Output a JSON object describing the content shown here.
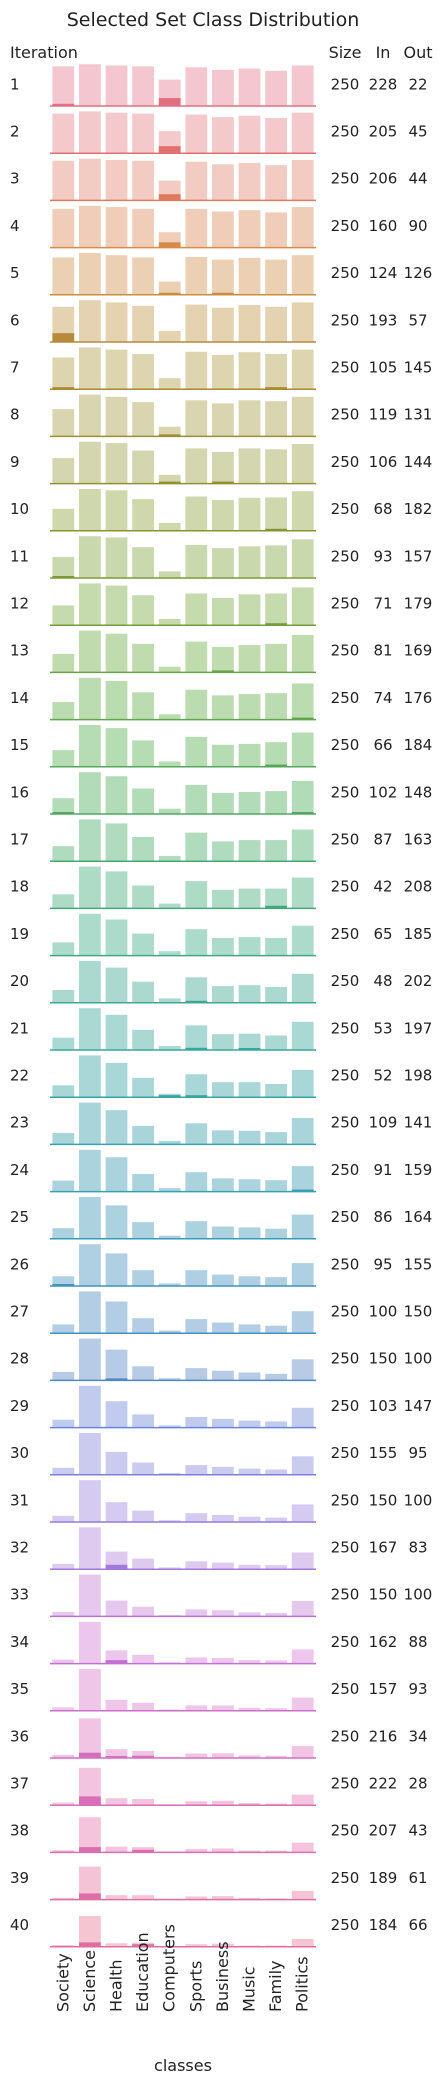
{
  "chart_data": {
    "type": "bar",
    "title": "Selected Set Class Distribution",
    "xlabel": "classes",
    "row_header": "Iteration",
    "column_headers": [
      "Size",
      "In",
      "Out"
    ],
    "categories": [
      "Society",
      "Science",
      "Health",
      "Education",
      "Computers",
      "Sports",
      "Business",
      "Music",
      "Family",
      "Politics"
    ],
    "total_heights": [
      0.9,
      0.95,
      0.92,
      0.9,
      0.6,
      0.88,
      0.82,
      0.85,
      0.8,
      0.92
    ],
    "total_decay": [
      [
        0.9,
        0.95,
        0.92,
        0.9,
        0.6,
        0.88,
        0.82,
        0.85,
        0.8,
        0.92
      ],
      [
        0.9,
        0.95,
        0.92,
        0.9,
        0.5,
        0.88,
        0.82,
        0.85,
        0.8,
        0.92
      ],
      [
        0.9,
        0.95,
        0.92,
        0.9,
        0.45,
        0.88,
        0.82,
        0.85,
        0.8,
        0.92
      ],
      [
        0.88,
        0.95,
        0.92,
        0.88,
        0.35,
        0.88,
        0.82,
        0.85,
        0.8,
        0.92
      ],
      [
        0.85,
        0.95,
        0.9,
        0.85,
        0.3,
        0.86,
        0.8,
        0.84,
        0.8,
        0.9
      ],
      [
        0.8,
        0.95,
        0.9,
        0.82,
        0.25,
        0.85,
        0.78,
        0.84,
        0.8,
        0.9
      ],
      [
        0.72,
        0.95,
        0.9,
        0.8,
        0.25,
        0.85,
        0.78,
        0.84,
        0.8,
        0.9
      ],
      [
        0.62,
        0.95,
        0.9,
        0.78,
        0.22,
        0.82,
        0.75,
        0.82,
        0.8,
        0.9
      ],
      [
        0.58,
        0.95,
        0.92,
        0.75,
        0.2,
        0.8,
        0.72,
        0.8,
        0.78,
        0.9
      ],
      [
        0.5,
        0.95,
        0.92,
        0.72,
        0.18,
        0.78,
        0.7,
        0.75,
        0.76,
        0.9
      ],
      [
        0.48,
        0.95,
        0.92,
        0.7,
        0.15,
        0.75,
        0.68,
        0.72,
        0.74,
        0.88
      ],
      [
        0.45,
        0.95,
        0.9,
        0.68,
        0.14,
        0.72,
        0.62,
        0.7,
        0.72,
        0.86
      ],
      [
        0.42,
        0.95,
        0.88,
        0.65,
        0.13,
        0.7,
        0.58,
        0.62,
        0.65,
        0.85
      ],
      [
        0.4,
        0.95,
        0.88,
        0.62,
        0.12,
        0.68,
        0.55,
        0.58,
        0.6,
        0.82
      ],
      [
        0.38,
        0.95,
        0.88,
        0.6,
        0.12,
        0.68,
        0.5,
        0.52,
        0.56,
        0.78
      ],
      [
        0.36,
        0.95,
        0.86,
        0.58,
        0.12,
        0.66,
        0.48,
        0.5,
        0.52,
        0.75
      ],
      [
        0.34,
        0.95,
        0.86,
        0.55,
        0.12,
        0.65,
        0.45,
        0.48,
        0.48,
        0.72
      ],
      [
        0.32,
        0.95,
        0.84,
        0.52,
        0.11,
        0.62,
        0.42,
        0.45,
        0.45,
        0.7
      ],
      [
        0.3,
        0.95,
        0.82,
        0.5,
        0.1,
        0.6,
        0.4,
        0.42,
        0.4,
        0.68
      ],
      [
        0.29,
        0.95,
        0.8,
        0.48,
        0.1,
        0.58,
        0.38,
        0.4,
        0.36,
        0.66
      ],
      [
        0.28,
        0.95,
        0.8,
        0.46,
        0.09,
        0.56,
        0.36,
        0.37,
        0.33,
        0.64
      ],
      [
        0.27,
        0.95,
        0.78,
        0.44,
        0.08,
        0.52,
        0.34,
        0.34,
        0.3,
        0.62
      ],
      [
        0.26,
        0.95,
        0.78,
        0.42,
        0.08,
        0.48,
        0.32,
        0.31,
        0.28,
        0.6
      ],
      [
        0.25,
        0.95,
        0.78,
        0.4,
        0.08,
        0.44,
        0.3,
        0.28,
        0.26,
        0.58
      ],
      [
        0.24,
        0.95,
        0.76,
        0.38,
        0.07,
        0.4,
        0.28,
        0.26,
        0.23,
        0.55
      ],
      [
        0.22,
        0.95,
        0.74,
        0.36,
        0.06,
        0.36,
        0.26,
        0.22,
        0.2,
        0.52
      ],
      [
        0.2,
        0.95,
        0.72,
        0.34,
        0.06,
        0.32,
        0.24,
        0.2,
        0.17,
        0.5
      ],
      [
        0.19,
        0.95,
        0.7,
        0.32,
        0.05,
        0.28,
        0.22,
        0.18,
        0.15,
        0.48
      ],
      [
        0.18,
        0.95,
        0.6,
        0.3,
        0.05,
        0.24,
        0.2,
        0.16,
        0.14,
        0.45
      ],
      [
        0.16,
        0.95,
        0.52,
        0.28,
        0.04,
        0.22,
        0.18,
        0.14,
        0.12,
        0.42
      ],
      [
        0.14,
        0.95,
        0.45,
        0.26,
        0.04,
        0.2,
        0.16,
        0.12,
        0.1,
        0.4
      ],
      [
        0.12,
        0.95,
        0.4,
        0.24,
        0.04,
        0.18,
        0.15,
        0.1,
        0.09,
        0.38
      ],
      [
        0.1,
        0.95,
        0.36,
        0.22,
        0.03,
        0.16,
        0.14,
        0.09,
        0.08,
        0.35
      ],
      [
        0.09,
        0.95,
        0.3,
        0.2,
        0.03,
        0.14,
        0.13,
        0.08,
        0.07,
        0.32
      ],
      [
        0.08,
        0.95,
        0.25,
        0.18,
        0.03,
        0.12,
        0.12,
        0.07,
        0.06,
        0.3
      ],
      [
        0.07,
        0.9,
        0.2,
        0.16,
        0.03,
        0.1,
        0.11,
        0.06,
        0.05,
        0.27
      ],
      [
        0.06,
        0.85,
        0.16,
        0.14,
        0.02,
        0.09,
        0.1,
        0.05,
        0.04,
        0.24
      ],
      [
        0.05,
        0.8,
        0.13,
        0.12,
        0.02,
        0.08,
        0.09,
        0.04,
        0.04,
        0.22
      ],
      [
        0.04,
        0.75,
        0.1,
        0.1,
        0.02,
        0.07,
        0.08,
        0.04,
        0.03,
        0.2
      ],
      [
        0.04,
        0.7,
        0.08,
        0.09,
        0.02,
        0.06,
        0.07,
        0.03,
        0.03,
        0.18
      ]
    ],
    "rows": [
      {
        "iteration": "1",
        "size": "250",
        "in": "228",
        "out": "22",
        "color": "#f4c7d0",
        "dark": "#e0707f",
        "sel": [
          0.05,
          0,
          0,
          0,
          0.18,
          0,
          0,
          0,
          0,
          0
        ]
      },
      {
        "iteration": "2",
        "size": "250",
        "in": "205",
        "out": "45",
        "color": "#f4c9cc",
        "dark": "#e07070",
        "sel": [
          0,
          0,
          0,
          0,
          0.16,
          0,
          0,
          0,
          0,
          0
        ]
      },
      {
        "iteration": "3",
        "size": "250",
        "in": "206",
        "out": "44",
        "color": "#f2cbc3",
        "dark": "#e07a5f",
        "sel": [
          0,
          0,
          0,
          0,
          0.14,
          0,
          0,
          0,
          0,
          0
        ]
      },
      {
        "iteration": "4",
        "size": "250",
        "in": "160",
        "out": "90",
        "color": "#efcdb8",
        "dark": "#d88a4a",
        "sel": [
          0,
          0,
          0,
          0,
          0.12,
          0,
          0,
          0,
          0,
          0
        ]
      },
      {
        "iteration": "5",
        "size": "250",
        "in": "124",
        "out": "126",
        "color": "#ebd0b3",
        "dark": "#c98f3f",
        "sel": [
          0,
          0,
          0,
          0,
          0.02,
          0,
          0.03,
          0,
          0,
          0
        ]
      },
      {
        "iteration": "6",
        "size": "250",
        "in": "193",
        "out": "57",
        "color": "#e4d2b0",
        "dark": "#b68a3a",
        "sel": [
          0.2,
          0,
          0,
          0,
          0,
          0,
          0,
          0,
          0,
          0
        ]
      },
      {
        "iteration": "7",
        "size": "250",
        "in": "105",
        "out": "145",
        "color": "#ddd4b0",
        "dark": "#a98a2e",
        "sel": [
          0.04,
          0,
          0,
          0,
          0,
          0,
          0,
          0,
          0.02,
          0
        ]
      },
      {
        "iteration": "8",
        "size": "250",
        "in": "119",
        "out": "131",
        "color": "#d8d5b0",
        "dark": "#9e8d2e",
        "sel": [
          0,
          0,
          0,
          0,
          0.02,
          0,
          0,
          0,
          0,
          0
        ]
      },
      {
        "iteration": "9",
        "size": "250",
        "in": "106",
        "out": "144",
        "color": "#d3d6ae",
        "dark": "#929030",
        "sel": [
          0,
          0,
          0,
          0,
          0.03,
          0,
          0.03,
          0,
          0,
          0
        ]
      },
      {
        "iteration": "10",
        "size": "250",
        "in": "68",
        "out": "182",
        "color": "#cfd8ac",
        "dark": "#869530",
        "sel": [
          0,
          0,
          0,
          0,
          0,
          0,
          0,
          0,
          0.04,
          0
        ]
      },
      {
        "iteration": "11",
        "size": "250",
        "in": "93",
        "out": "157",
        "color": "#cad9ad",
        "dark": "#7c9a36",
        "sel": [
          0.02,
          0,
          0,
          0,
          0,
          0,
          0,
          0,
          0,
          0
        ]
      },
      {
        "iteration": "12",
        "size": "250",
        "in": "71",
        "out": "179",
        "color": "#c5daad",
        "dark": "#729e3c",
        "sel": [
          0,
          0,
          0,
          0,
          0,
          0,
          0,
          0,
          0.03,
          0
        ]
      },
      {
        "iteration": "13",
        "size": "250",
        "in": "81",
        "out": "169",
        "color": "#c0dbae",
        "dark": "#68a244",
        "sel": [
          0,
          0,
          0,
          0,
          0,
          0,
          0.02,
          0,
          0,
          0
        ]
      },
      {
        "iteration": "14",
        "size": "250",
        "in": "74",
        "out": "176",
        "color": "#bbdcb0",
        "dark": "#5fa54c",
        "sel": [
          0,
          0,
          0,
          0,
          0,
          0,
          0,
          0,
          0,
          0.02
        ]
      },
      {
        "iteration": "15",
        "size": "250",
        "in": "66",
        "out": "184",
        "color": "#b5dcb3",
        "dark": "#56a658",
        "sel": [
          0,
          0,
          0,
          0,
          0,
          0,
          0,
          0,
          0.05,
          0
        ]
      },
      {
        "iteration": "16",
        "size": "250",
        "in": "102",
        "out": "148",
        "color": "#b2dbb8",
        "dark": "#50a763",
        "sel": [
          0.02,
          0,
          0,
          0,
          0,
          0,
          0,
          0,
          0,
          0.02
        ]
      },
      {
        "iteration": "17",
        "size": "250",
        "in": "87",
        "out": "163",
        "color": "#b0dbbf",
        "dark": "#4aa86f",
        "sel": [
          0,
          0,
          0,
          0,
          0,
          0,
          0,
          0,
          0,
          0
        ]
      },
      {
        "iteration": "18",
        "size": "250",
        "in": "42",
        "out": "208",
        "color": "#aedbc6",
        "dark": "#45a87b",
        "sel": [
          0,
          0,
          0,
          0,
          0,
          0,
          0,
          0,
          0.06,
          0
        ]
      },
      {
        "iteration": "19",
        "size": "250",
        "in": "65",
        "out": "185",
        "color": "#acdacb",
        "dark": "#40a888",
        "sel": [
          0,
          0,
          0,
          0,
          0,
          0,
          0,
          0,
          0,
          0
        ]
      },
      {
        "iteration": "20",
        "size": "250",
        "in": "48",
        "out": "202",
        "color": "#abd9cf",
        "dark": "#3ca893",
        "sel": [
          0,
          0,
          0,
          0,
          0,
          0.03,
          0,
          0,
          0,
          0
        ]
      },
      {
        "iteration": "21",
        "size": "250",
        "in": "53",
        "out": "197",
        "color": "#aad8d3",
        "dark": "#38a79d",
        "sel": [
          0,
          0,
          0,
          0,
          0,
          0.05,
          0,
          0.02,
          0,
          0
        ]
      },
      {
        "iteration": "22",
        "size": "250",
        "in": "52",
        "out": "198",
        "color": "#a9d7d7",
        "dark": "#35a5a6",
        "sel": [
          0,
          0,
          0,
          0,
          0.02,
          0.04,
          0,
          0,
          0,
          0
        ]
      },
      {
        "iteration": "23",
        "size": "250",
        "in": "109",
        "out": "141",
        "color": "#a9d5da",
        "dark": "#35a2ad",
        "sel": [
          0,
          0,
          0,
          0,
          0,
          0,
          0,
          0,
          0,
          0
        ]
      },
      {
        "iteration": "24",
        "size": "250",
        "in": "91",
        "out": "159",
        "color": "#aad3dd",
        "dark": "#379eb3",
        "sel": [
          0,
          0,
          0,
          0,
          0,
          0,
          0,
          0,
          0,
          0.02
        ]
      },
      {
        "iteration": "25",
        "size": "250",
        "in": "86",
        "out": "164",
        "color": "#acd1df",
        "dark": "#3a99b8",
        "sel": [
          0,
          0,
          0,
          0,
          0,
          0,
          0,
          0,
          0,
          0
        ]
      },
      {
        "iteration": "26",
        "size": "250",
        "in": "95",
        "out": "155",
        "color": "#afcfe2",
        "dark": "#3e94bc",
        "sel": [
          0.03,
          0,
          0,
          0,
          0,
          0,
          0,
          0,
          0,
          0
        ]
      },
      {
        "iteration": "27",
        "size": "250",
        "in": "100",
        "out": "150",
        "color": "#b3cde4",
        "dark": "#438fc0",
        "sel": [
          0,
          0,
          0,
          0,
          0,
          0,
          0,
          0,
          0,
          0
        ]
      },
      {
        "iteration": "28",
        "size": "250",
        "in": "150",
        "out": "100",
        "color": "#b8cbe6",
        "dark": "#4a89c4",
        "sel": [
          0,
          0,
          0.04,
          0,
          0,
          0,
          0,
          0,
          0,
          0
        ]
      },
      {
        "iteration": "29",
        "size": "250",
        "in": "103",
        "out": "147",
        "color": "#c0cbee",
        "dark": "#6a84d6",
        "sel": [
          0,
          0,
          0,
          0,
          0,
          0,
          0,
          0,
          0,
          0
        ]
      },
      {
        "iteration": "30",
        "size": "250",
        "in": "155",
        "out": "95",
        "color": "#cacbef",
        "dark": "#7e80d8",
        "sel": [
          0,
          0,
          0,
          0,
          0,
          0,
          0,
          0,
          0,
          0
        ]
      },
      {
        "iteration": "31",
        "size": "250",
        "in": "150",
        "out": "100",
        "color": "#d5caef",
        "dark": "#927cd8",
        "sel": [
          0,
          0,
          0,
          0,
          0,
          0,
          0,
          0,
          0,
          0
        ]
      },
      {
        "iteration": "32",
        "size": "250",
        "in": "167",
        "out": "83",
        "color": "#dec9ef",
        "dark": "#a478d8",
        "sel": [
          0,
          0,
          0.1,
          0,
          0,
          0,
          0,
          0,
          0,
          0
        ]
      },
      {
        "iteration": "33",
        "size": "250",
        "in": "150",
        "out": "100",
        "color": "#e6c8ee",
        "dark": "#b474d6",
        "sel": [
          0,
          0,
          0,
          0,
          0,
          0,
          0,
          0,
          0,
          0
        ]
      },
      {
        "iteration": "34",
        "size": "250",
        "in": "162",
        "out": "88",
        "color": "#ecc6ec",
        "dark": "#c470d2",
        "sel": [
          0,
          0,
          0.08,
          0,
          0,
          0,
          0,
          0,
          0,
          0
        ]
      },
      {
        "iteration": "35",
        "size": "250",
        "in": "157",
        "out": "93",
        "color": "#efc5e8",
        "dark": "#cc6fca",
        "sel": [
          0,
          0,
          0,
          0,
          0,
          0,
          0,
          0,
          0,
          0
        ]
      },
      {
        "iteration": "36",
        "size": "250",
        "in": "216",
        "out": "34",
        "color": "#f1c4e4",
        "dark": "#d46ec2",
        "sel": [
          0,
          0.12,
          0.04,
          0.05,
          0,
          0,
          0,
          0,
          0,
          0
        ]
      },
      {
        "iteration": "37",
        "size": "250",
        "in": "222",
        "out": "28",
        "color": "#f2c4e0",
        "dark": "#d96eb9",
        "sel": [
          0,
          0.2,
          0,
          0,
          0,
          0,
          0,
          0,
          0,
          0
        ]
      },
      {
        "iteration": "38",
        "size": "250",
        "in": "207",
        "out": "43",
        "color": "#f3c4db",
        "dark": "#dc6eb0",
        "sel": [
          0,
          0.12,
          0,
          0.06,
          0,
          0,
          0,
          0,
          0,
          0
        ]
      },
      {
        "iteration": "39",
        "size": "250",
        "in": "189",
        "out": "61",
        "color": "#f4c4d6",
        "dark": "#de6ea8",
        "sel": [
          0,
          0.14,
          0,
          0,
          0,
          0,
          0,
          0,
          0,
          0
        ]
      },
      {
        "iteration": "40",
        "size": "250",
        "in": "184",
        "out": "66",
        "color": "#f5c5d2",
        "dark": "#e06ea0",
        "sel": [
          0,
          0.1,
          0,
          0.06,
          0,
          0,
          0,
          0,
          0,
          0
        ]
      }
    ]
  }
}
